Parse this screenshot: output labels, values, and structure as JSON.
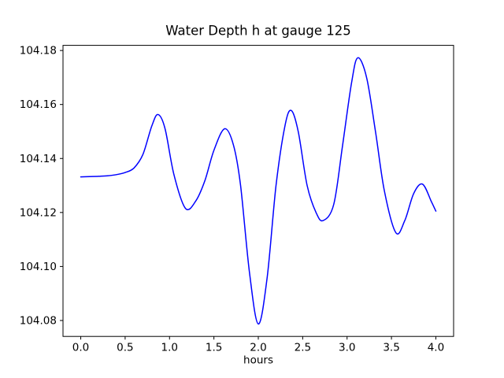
{
  "figure": {
    "background": "#ffffff"
  },
  "chart_data": {
    "type": "line",
    "title": "Water Depth h at gauge 125",
    "xlabel": "hours",
    "ylabel": "",
    "grid": false,
    "legend": "none",
    "line_color": "#0000ff",
    "line_width": 1.5,
    "xlim": [
      -0.2,
      4.2
    ],
    "ylim": [
      104.0741,
      104.1819
    ],
    "xticks": [
      {
        "value": 0.0,
        "label": "0.0"
      },
      {
        "value": 0.5,
        "label": "0.5"
      },
      {
        "value": 1.0,
        "label": "1.0"
      },
      {
        "value": 1.5,
        "label": "1.5"
      },
      {
        "value": 2.0,
        "label": "2.0"
      },
      {
        "value": 2.5,
        "label": "2.5"
      },
      {
        "value": 3.0,
        "label": "3.0"
      },
      {
        "value": 3.5,
        "label": "3.5"
      },
      {
        "value": 4.0,
        "label": "4.0"
      }
    ],
    "yticks": [
      {
        "value": 104.08,
        "label": "104.08"
      },
      {
        "value": 104.1,
        "label": "104.10"
      },
      {
        "value": 104.12,
        "label": "104.12"
      },
      {
        "value": 104.14,
        "label": "104.14"
      },
      {
        "value": 104.16,
        "label": "104.16"
      },
      {
        "value": 104.18,
        "label": "104.18"
      }
    ],
    "x": [
      0.0,
      0.1,
      0.2,
      0.3,
      0.4,
      0.5,
      0.6,
      0.7,
      0.8,
      0.87,
      0.95,
      1.05,
      1.18,
      1.3,
      1.4,
      1.5,
      1.62,
      1.72,
      1.8,
      1.9,
      2.0,
      2.1,
      2.2,
      2.3,
      2.37,
      2.45,
      2.55,
      2.65,
      2.73,
      2.85,
      2.95,
      3.05,
      3.12,
      3.22,
      3.32,
      3.42,
      3.55,
      3.65,
      3.75,
      3.85,
      3.95,
      4.0
    ],
    "y": [
      104.1332,
      104.1333,
      104.1334,
      104.1336,
      104.134,
      104.1348,
      104.1365,
      104.1415,
      104.152,
      104.1563,
      104.151,
      104.134,
      104.1215,
      104.1245,
      104.132,
      104.143,
      104.151,
      104.145,
      104.13,
      104.098,
      104.0787,
      104.096,
      104.13,
      104.152,
      104.1578,
      104.15,
      104.13,
      104.12,
      104.117,
      104.123,
      104.145,
      104.168,
      104.1773,
      104.17,
      104.15,
      104.128,
      104.1125,
      104.117,
      104.127,
      104.1305,
      104.124,
      104.1205
    ]
  }
}
